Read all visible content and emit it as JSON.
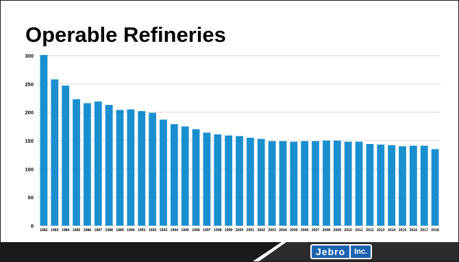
{
  "slide": {
    "title": "Operable Refineries",
    "logo_text": "Jebro",
    "logo_suffix": "Inc."
  },
  "colors": {
    "bar": "#1a8fd0",
    "gridline": "#d9d9d9",
    "footer": "#1a1a1a",
    "logo": "#1d64b0"
  },
  "chart_data": {
    "type": "bar",
    "title": "Operable Refineries",
    "xlabel": "",
    "ylabel": "",
    "ylim": [
      0,
      300
    ],
    "yticks": [
      0,
      50,
      100,
      150,
      200,
      250,
      300
    ],
    "grid": true,
    "categories": [
      "1982",
      "1983",
      "1984",
      "1985",
      "1986",
      "1987",
      "1988",
      "1989",
      "1990",
      "1991",
      "1992",
      "1993",
      "1994",
      "1995",
      "1996",
      "1997",
      "1998",
      "1999",
      "2000",
      "2001",
      "2002",
      "2003",
      "2004",
      "2005",
      "2006",
      "2007",
      "2008",
      "2009",
      "2010",
      "2011",
      "2012",
      "2013",
      "2014",
      "2015",
      "2016",
      "2017",
      "2018"
    ],
    "values": [
      301,
      258,
      247,
      223,
      216,
      219,
      213,
      204,
      205,
      202,
      199,
      187,
      179,
      175,
      170,
      164,
      161,
      159,
      158,
      155,
      153,
      149,
      149,
      148,
      149,
      149,
      150,
      150,
      148,
      148,
      144,
      143,
      142,
      140,
      141,
      141,
      135
    ]
  }
}
